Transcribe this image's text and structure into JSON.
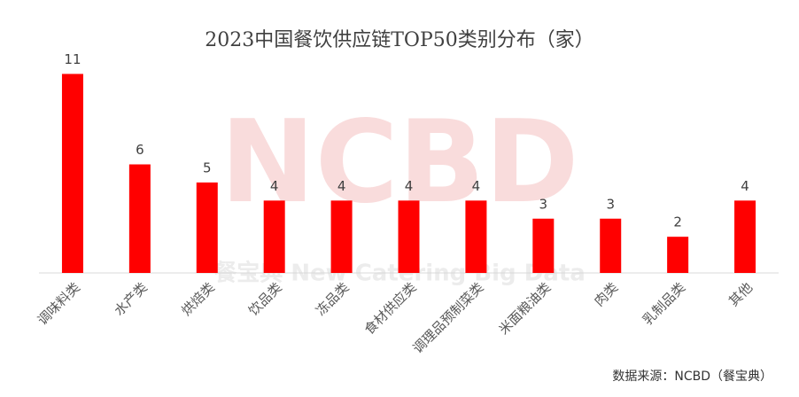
{
  "chart_data": {
    "type": "bar",
    "title": "2023中国餐饮供应链TOP50类别分布（家）",
    "categories": [
      "调味料类",
      "水产类",
      "烘焙类",
      "饮品类",
      "冻品类",
      "食材供应类",
      "调理品预制菜类",
      "米面粮油类",
      "肉类",
      "乳制品类",
      "其他"
    ],
    "values": [
      11,
      6,
      5,
      4,
      4,
      4,
      4,
      3,
      3,
      2,
      4
    ],
    "color": "#ff0000",
    "ylim": [
      0,
      12
    ],
    "source": "数据来源：NCBD（餐宝典）",
    "watermark": {
      "logo": "NCBD",
      "text": "餐宝典 New Catering Big Data"
    }
  }
}
